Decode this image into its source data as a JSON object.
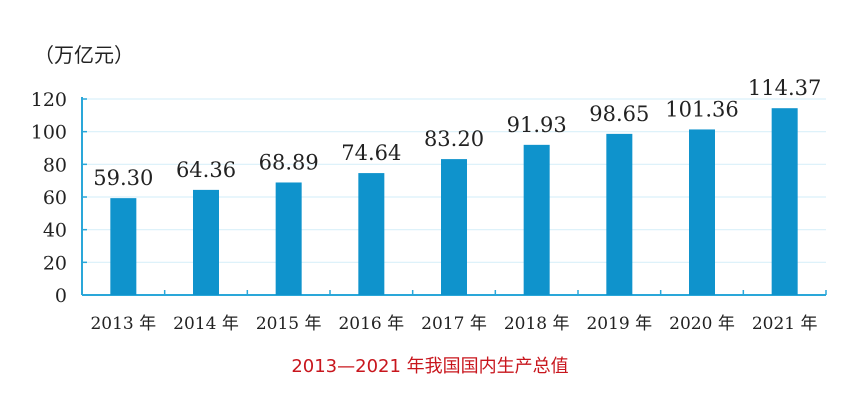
{
  "chart_data": {
    "type": "bar",
    "title": "2013—2021 年我国国内生产总值",
    "unit_label": "（万亿元）",
    "xlabel": "",
    "ylabel": "",
    "categories": [
      "2013 年",
      "2014 年",
      "2015 年",
      "2016 年",
      "2017 年",
      "2018 年",
      "2019 年",
      "2020 年",
      "2021 年"
    ],
    "values": [
      59.3,
      64.36,
      68.89,
      74.64,
      83.2,
      91.93,
      98.65,
      101.36,
      114.37
    ],
    "value_labels": [
      "59.30",
      "64.36",
      "68.89",
      "74.64",
      "83.20",
      "91.93",
      "98.65",
      "101.36",
      "114.37"
    ],
    "ylim": [
      0,
      120
    ],
    "yticks": [
      0,
      20,
      40,
      60,
      80,
      100,
      120
    ],
    "grid": true,
    "legend": "none",
    "colors": {
      "bar": "#0f93cc",
      "axis": "#2aa7d9",
      "grid": "#d9f0f9",
      "title": "#c8161d"
    }
  }
}
